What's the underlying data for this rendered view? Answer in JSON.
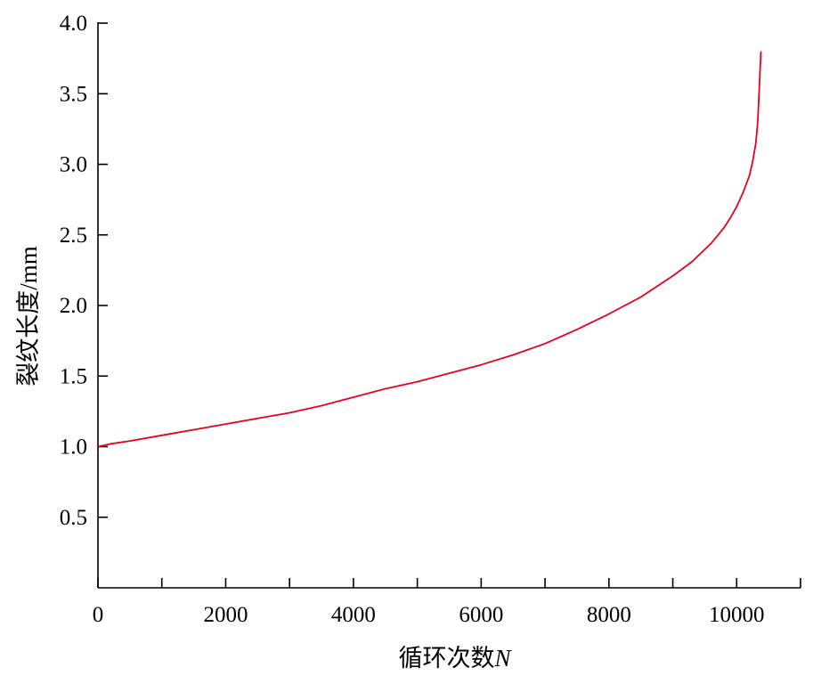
{
  "chart_data": {
    "type": "line",
    "title": "",
    "xlabel": "循环次数",
    "xlabel_var": "N",
    "ylabel": "裂纹长度/mm",
    "xlim": [
      0,
      11000
    ],
    "ylim": [
      0,
      4.0
    ],
    "xticks": [
      0,
      2000,
      4000,
      6000,
      8000,
      10000
    ],
    "xtick_labels": [
      "0",
      "2000",
      "4000",
      "6000",
      "8000",
      "10000"
    ],
    "xticks_minor": [
      1000,
      3000,
      5000,
      7000,
      9000,
      11000
    ],
    "yticks": [
      0.5,
      1.0,
      1.5,
      2.0,
      2.5,
      3.0,
      3.5,
      4.0
    ],
    "ytick_labels": [
      "0.5",
      "1.0",
      "1.5",
      "2.0",
      "2.5",
      "3.0",
      "3.5",
      "4.0"
    ],
    "grid": false,
    "colors": {
      "series": "#e8001c",
      "axis": "#000000"
    },
    "series": [
      {
        "x": [
          0,
          200,
          500,
          1000,
          1500,
          2000,
          2500,
          3000,
          3500,
          4000,
          4500,
          5000,
          5500,
          6000,
          6500,
          7000,
          7500,
          8000,
          8500,
          9000,
          9300,
          9600,
          9800,
          9900,
          10000,
          10100,
          10200,
          10250,
          10300,
          10330,
          10350,
          10370,
          10380
        ],
        "y": [
          1.0,
          1.02,
          1.04,
          1.08,
          1.12,
          1.16,
          1.2,
          1.24,
          1.29,
          1.35,
          1.41,
          1.46,
          1.52,
          1.58,
          1.65,
          1.73,
          1.83,
          1.94,
          2.06,
          2.21,
          2.31,
          2.44,
          2.55,
          2.62,
          2.7,
          2.8,
          2.92,
          3.02,
          3.15,
          3.3,
          3.5,
          3.7,
          3.8
        ]
      }
    ]
  }
}
